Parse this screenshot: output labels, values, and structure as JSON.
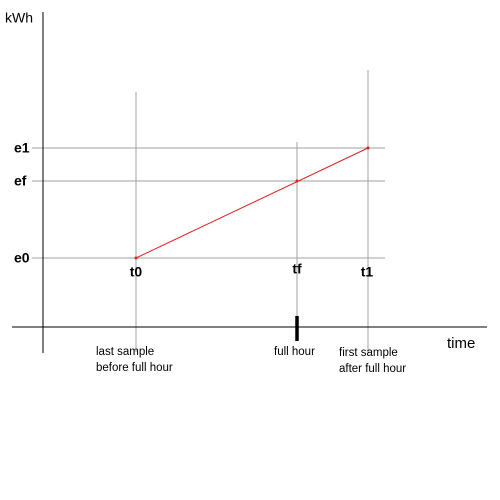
{
  "axes": {
    "y_label": "kWh",
    "x_label": "time"
  },
  "levels": [
    {
      "label": "e1"
    },
    {
      "label": "ef"
    },
    {
      "label": "e0"
    }
  ],
  "times": [
    {
      "label": "t0",
      "annotation": [
        "last sample",
        "before full hour"
      ]
    },
    {
      "label": "tf",
      "annotation": [
        "full hour"
      ]
    },
    {
      "label": "t1",
      "annotation": [
        "first sample",
        "after full hour"
      ]
    }
  ]
}
